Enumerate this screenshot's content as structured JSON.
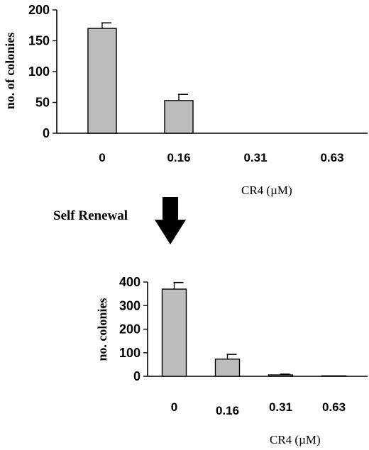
{
  "chart_data": [
    {
      "type": "bar",
      "ylabel": "no. of colonies",
      "xlabel": "CR4 (µM)",
      "categories": [
        "0",
        "0.16",
        "0.31",
        "0.63"
      ],
      "values": [
        170,
        53,
        0,
        0
      ],
      "errors": [
        9,
        10,
        0,
        0
      ],
      "ylim": [
        0,
        200
      ],
      "yticks": [
        "0",
        "50",
        "100",
        "150",
        "200"
      ],
      "grid": false,
      "bar_color": "#bdbdbd"
    },
    {
      "type": "bar",
      "ylabel": "no. colonies",
      "xlabel": "CR4 (µM)",
      "categories": [
        "0",
        "0.16",
        "0.31",
        "0.63"
      ],
      "values": [
        370,
        73,
        6,
        2
      ],
      "errors": [
        28,
        20,
        3,
        0
      ],
      "ylim": [
        0,
        400
      ],
      "yticks": [
        "0",
        "100",
        "200",
        "300",
        "400"
      ],
      "grid": false,
      "bar_color": "#bdbdbd"
    }
  ],
  "annotation": {
    "label": "Self Renewal",
    "arrow_icon": "down-arrow-icon"
  }
}
